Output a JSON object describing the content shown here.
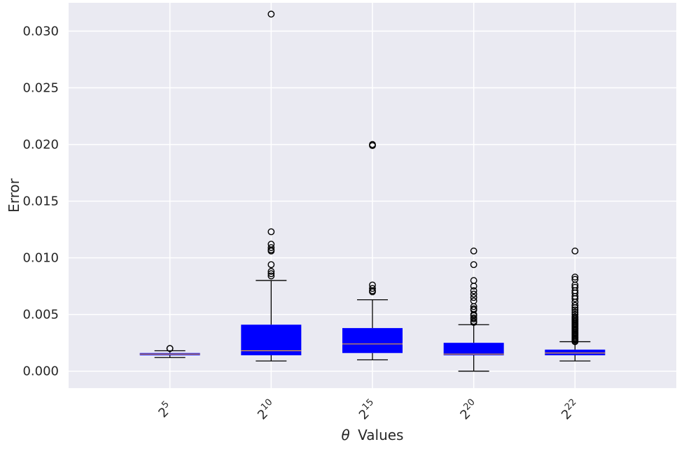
{
  "chart_data": {
    "type": "boxplot",
    "title": "",
    "xlabel": "θ Values",
    "xlabel_symbol": "θ",
    "xlabel_text": "Values",
    "ylabel": "Error",
    "ylim": [
      -0.0015,
      0.0325
    ],
    "yticks": [
      0.0,
      0.005,
      0.01,
      0.015,
      0.02,
      0.025,
      0.03
    ],
    "ytick_labels": [
      "0.000",
      "0.005",
      "0.010",
      "0.015",
      "0.020",
      "0.025",
      "0.030"
    ],
    "grid": true,
    "box_color": "#0000ff",
    "median_color": "#e8a33c",
    "background_color": "#eaeaf2",
    "categories": [
      {
        "label": "2^5",
        "base": "2",
        "exp": "5",
        "q1": 0.0014,
        "median": 0.0015,
        "q3": 0.0016,
        "whisker_low": 0.0012,
        "whisker_high": 0.0018,
        "outliers": [
          0.002,
          0.002
        ]
      },
      {
        "label": "2^10",
        "base": "2",
        "exp": "10",
        "q1": 0.0014,
        "median": 0.0018,
        "q3": 0.0041,
        "whisker_low": 0.0009,
        "whisker_high": 0.008,
        "outliers": [
          0.0084,
          0.0086,
          0.0088,
          0.0094,
          0.0106,
          0.0107,
          0.0109,
          0.0112,
          0.0123,
          0.0315
        ]
      },
      {
        "label": "2^15",
        "base": "2",
        "exp": "15",
        "q1": 0.0016,
        "median": 0.0024,
        "q3": 0.0038,
        "whisker_low": 0.001,
        "whisker_high": 0.0063,
        "outliers": [
          0.007,
          0.0071,
          0.0073,
          0.0076,
          0.0199,
          0.02
        ]
      },
      {
        "label": "2^20",
        "base": "2",
        "exp": "20",
        "q1": 0.0014,
        "median": 0.0015,
        "q3": 0.0025,
        "whisker_low": 0.0,
        "whisker_high": 0.0041,
        "outliers": [
          0.0043,
          0.0044,
          0.0046,
          0.0047,
          0.0049,
          0.005,
          0.0054,
          0.0055,
          0.0057,
          0.0062,
          0.0065,
          0.0068,
          0.0071,
          0.0075,
          0.008,
          0.0094,
          0.0106
        ]
      },
      {
        "label": "2^22",
        "base": "2",
        "exp": "22",
        "q1": 0.0014,
        "median": 0.0016,
        "q3": 0.0019,
        "whisker_low": 0.0009,
        "whisker_high": 0.0026,
        "outliers": [
          0.0026,
          0.0027,
          0.0028,
          0.0029,
          0.003,
          0.0031,
          0.0032,
          0.0033,
          0.0034,
          0.0035,
          0.0036,
          0.0037,
          0.0038,
          0.0039,
          0.004,
          0.0041,
          0.0042,
          0.0043,
          0.0044,
          0.0045,
          0.0046,
          0.0047,
          0.0048,
          0.005,
          0.0052,
          0.0054,
          0.0056,
          0.0058,
          0.0061,
          0.0064,
          0.0066,
          0.0069,
          0.0071,
          0.0074,
          0.0076,
          0.0081,
          0.0083,
          0.0106
        ]
      }
    ]
  }
}
